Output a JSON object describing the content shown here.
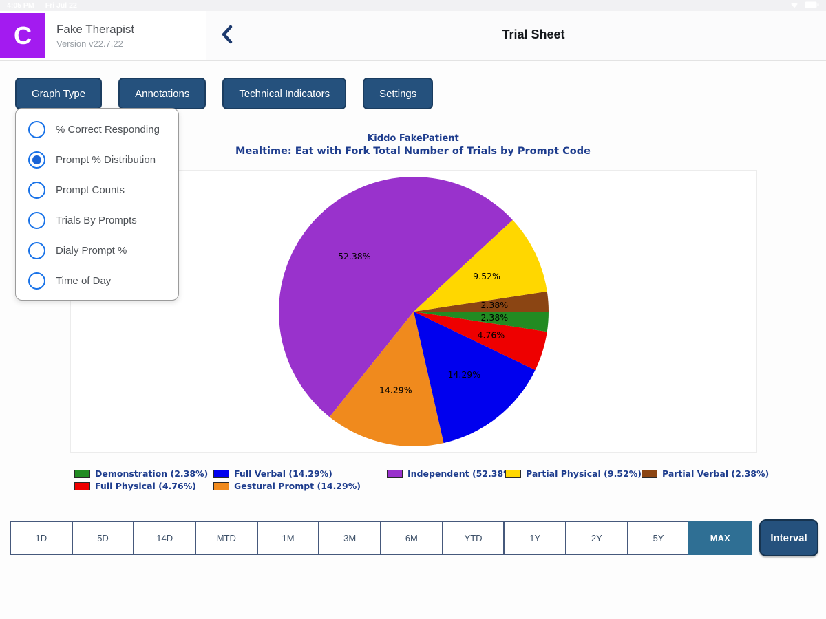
{
  "status_bar": {
    "time": "4:05 PM",
    "date": "Fri Jul 22"
  },
  "header": {
    "logo_letter": "C",
    "app_name": "Fake Therapist",
    "version": "Version v22.7.22",
    "title": "Trial Sheet"
  },
  "toolbar": {
    "buttons": [
      {
        "label": "Graph Type"
      },
      {
        "label": "Annotations"
      },
      {
        "label": "Technical Indicators"
      },
      {
        "label": "Settings"
      }
    ]
  },
  "graph_type_menu": {
    "items": [
      {
        "label": "% Correct Responding",
        "selected": false
      },
      {
        "label": "Prompt % Distribution",
        "selected": true
      },
      {
        "label": "Prompt Counts",
        "selected": false
      },
      {
        "label": "Trials By Prompts",
        "selected": false
      },
      {
        "label": "Dialy Prompt %",
        "selected": false
      },
      {
        "label": "Time of Day",
        "selected": false
      }
    ]
  },
  "chart_data": {
    "type": "pie",
    "title_line1": "Kiddo FakePatient",
    "title_line2": "Mealtime: Eat with Fork Total Number of Trials by Prompt Code",
    "start_angle_deg": 0,
    "direction": "counterclockwise",
    "pct_label_distance": 0.6,
    "slices": [
      {
        "name": "Partial Verbal",
        "value": 2.38,
        "label": "2.38%",
        "color": "#8B4513"
      },
      {
        "name": "Partial Physical",
        "value": 9.52,
        "label": "9.52%",
        "color": "#FFD700"
      },
      {
        "name": "Independent",
        "value": 52.38,
        "label": "52.38%",
        "color": "#9932CC"
      },
      {
        "name": "Gestural Prompt",
        "value": 14.29,
        "label": "14.29%",
        "color": "#F08A1D"
      },
      {
        "name": "Full Verbal",
        "value": 14.29,
        "label": "14.29%",
        "color": "#0000EE"
      },
      {
        "name": "Full Physical",
        "value": 4.76,
        "label": "4.76%",
        "color": "#EE0000"
      },
      {
        "name": "Demonstration",
        "value": 2.38,
        "label": "2.38%",
        "color": "#228B22"
      }
    ],
    "legend": [
      {
        "label": "Demonstration (2.38%)",
        "color": "#228B22",
        "col": 1,
        "row": 1
      },
      {
        "label": "Full Physical (4.76%)",
        "color": "#EE0000",
        "col": 1,
        "row": 2
      },
      {
        "label": "Full Verbal (14.29%)",
        "color": "#0000EE",
        "col": 2,
        "row": 1
      },
      {
        "label": "Gestural Prompt (14.29%)",
        "color": "#F08A1D",
        "col": 2,
        "row": 2
      },
      {
        "label": "Independent (52.38%)",
        "color": "#9932CC",
        "col": 3,
        "row": 1
      },
      {
        "label": "Partial Physical (9.52%)",
        "color": "#FFD700",
        "col": 4,
        "row": 1
      },
      {
        "label": "Partial Verbal (2.38%)",
        "color": "#8B4513",
        "col": 5,
        "row": 1
      }
    ]
  },
  "range_bar": {
    "options": [
      "1D",
      "5D",
      "14D",
      "MTD",
      "1M",
      "3M",
      "6M",
      "YTD",
      "1Y",
      "2Y",
      "5Y",
      "MAX"
    ],
    "selected": "MAX",
    "interval_label": "Interval"
  }
}
